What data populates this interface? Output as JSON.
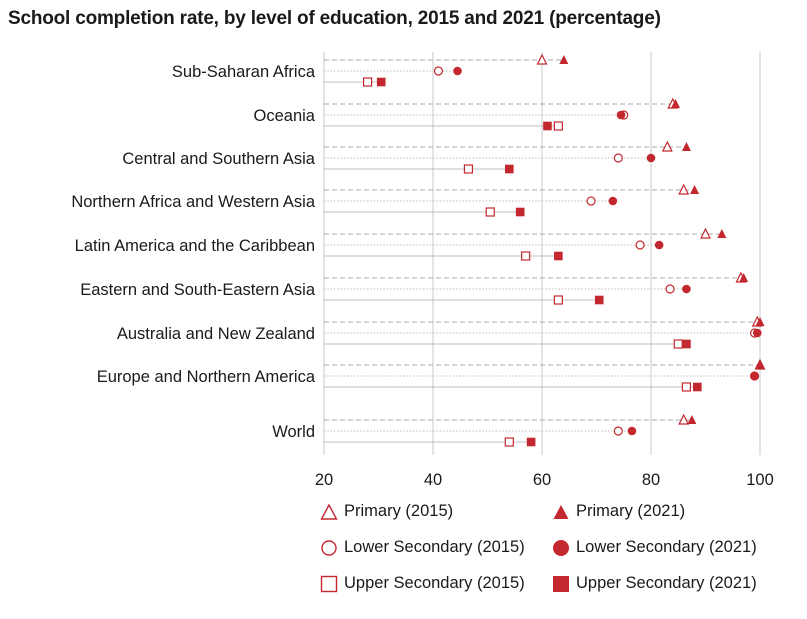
{
  "colors": {
    "accent": "#c4282f",
    "grid": "#c8c8c8",
    "dash": "#aaaaaa",
    "dotted": "#c9c9c9",
    "text": "#1a1a1a"
  },
  "chart_data": {
    "type": "dot",
    "title": "School completion rate, by level of education, 2015 and 2021 (percentage)",
    "xlim": [
      20,
      100
    ],
    "xticks": [
      20,
      40,
      60,
      80,
      100
    ],
    "grid": true,
    "legend_position": "bottom",
    "categories": [
      "Sub-Saharan Africa",
      "Oceania",
      "Central and Southern Asia",
      "Northern Africa and Western Asia",
      "Latin America and the Caribbean",
      "Eastern and South-Eastern Asia",
      "Australia and New Zealand",
      "Europe and Northern America",
      "World"
    ],
    "series": [
      {
        "name": "Primary (2015)",
        "marker": "triangle-open",
        "values": [
          60,
          84,
          83,
          86,
          90,
          96.5,
          99.5,
          100,
          86
        ]
      },
      {
        "name": "Primary (2021)",
        "marker": "triangle-filled",
        "values": [
          64,
          84.5,
          86.5,
          88,
          93,
          97,
          100,
          100,
          87.5
        ]
      },
      {
        "name": "Lower Secondary (2015)",
        "marker": "circle-open",
        "values": [
          41,
          75,
          74,
          69,
          78,
          83.5,
          99,
          99,
          74
        ]
      },
      {
        "name": "Lower Secondary (2021)",
        "marker": "circle-filled",
        "values": [
          44.5,
          74.5,
          80,
          73,
          81.5,
          86.5,
          99.5,
          99,
          76.5
        ]
      },
      {
        "name": "Upper Secondary (2015)",
        "marker": "square-open",
        "values": [
          28,
          63,
          46.5,
          50.5,
          57,
          63,
          85,
          86.5,
          54
        ]
      },
      {
        "name": "Upper Secondary (2021)",
        "marker": "square-filled",
        "values": [
          30.5,
          61,
          54,
          56,
          63,
          70.5,
          86.5,
          88.5,
          58
        ]
      }
    ]
  }
}
